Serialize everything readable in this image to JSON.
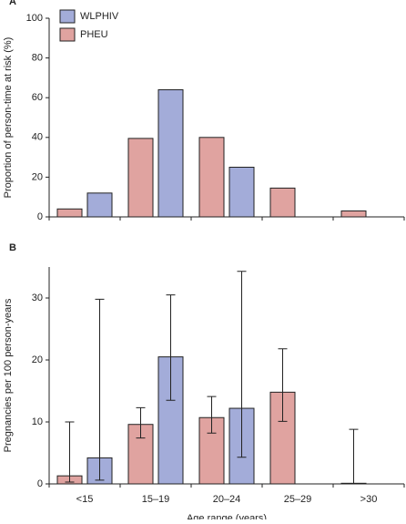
{
  "chart_data": [
    {
      "type": "bar",
      "panel": "A",
      "ylabel": "Proportion of person-time at risk (%)",
      "categories": [
        "<15",
        "15–19",
        "20–24",
        "25–29",
        ">30"
      ],
      "series": [
        {
          "name": "PHEU",
          "color": "#e0a3a0",
          "values": [
            4,
            39.5,
            40,
            14.5,
            3
          ]
        },
        {
          "name": "WLPHIV",
          "color": "#a3acd9",
          "values": [
            12,
            64,
            25,
            null,
            null
          ]
        }
      ],
      "legend_order": [
        "WLPHIV",
        "PHEU"
      ],
      "ylim": [
        0,
        100
      ],
      "yticks": [
        0,
        20,
        40,
        60,
        80,
        100
      ]
    },
    {
      "type": "bar",
      "panel": "B",
      "ylabel": "Pregnancies per 100 person-years",
      "xlabel": "Age range (years)",
      "categories": [
        "<15",
        "15–19",
        "20–24",
        "25–29",
        ">30"
      ],
      "series": [
        {
          "name": "PHEU",
          "color": "#e0a3a0",
          "values": [
            1.3,
            9.6,
            10.7,
            14.8,
            0.1
          ],
          "ci_low": [
            0.3,
            7.4,
            8.2,
            10.1,
            0
          ],
          "ci_high": [
            10,
            12.3,
            14.1,
            21.8,
            8.8
          ]
        },
        {
          "name": "WLPHIV",
          "color": "#a3acd9",
          "values": [
            4.2,
            20.5,
            12.2,
            null,
            null
          ],
          "ci_low": [
            0.6,
            13.5,
            4.3,
            null,
            null
          ],
          "ci_high": [
            29.8,
            30.5,
            34.3,
            null,
            null
          ]
        }
      ],
      "ylim": [
        0,
        35
      ],
      "yticks": [
        0,
        10,
        20,
        30
      ]
    }
  ]
}
